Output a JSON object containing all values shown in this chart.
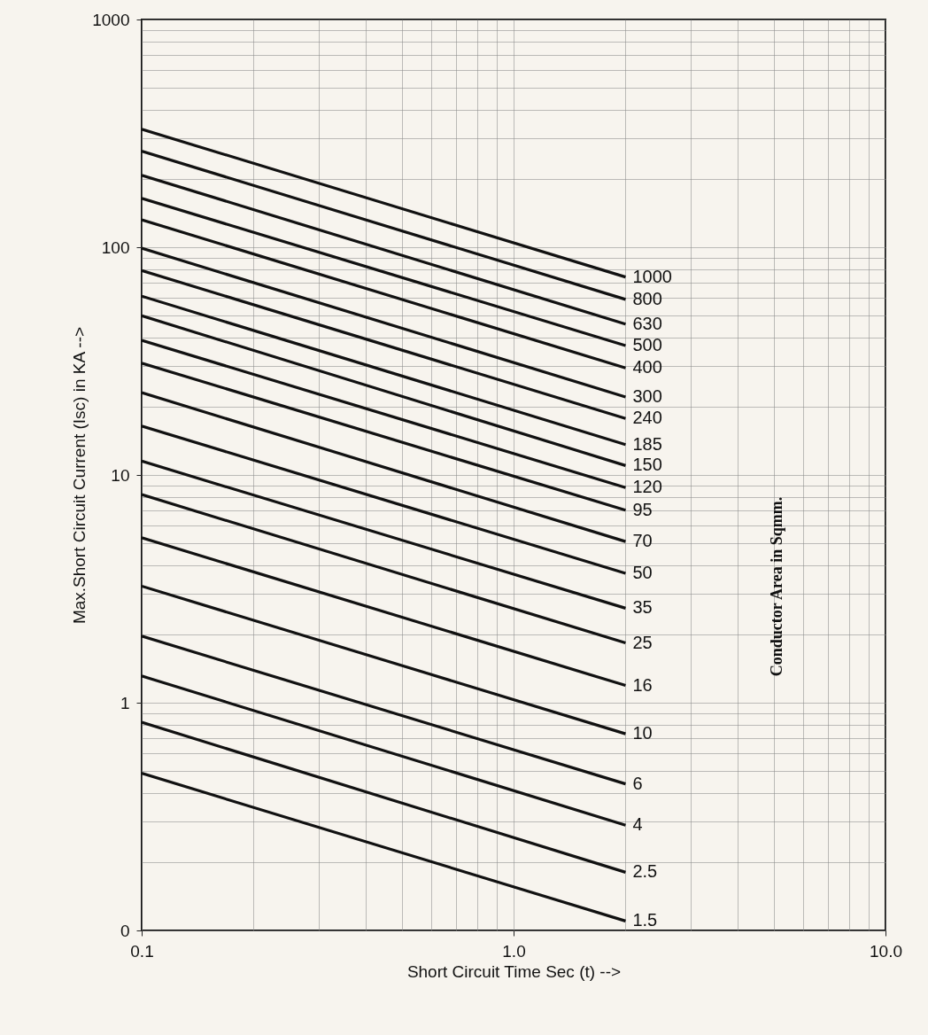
{
  "chart_data": {
    "type": "line",
    "xlabel": "Short Circuit Time Sec (t) -->",
    "ylabel": "Max.Short Circuit Current (Isc) in KA -->",
    "legend_title": "Conductor Area in  Sqmm.",
    "x": [
      0.1,
      2
    ],
    "series": [
      {
        "name": "1000",
        "color": "#111111",
        "values": [
          330,
          74
        ]
      },
      {
        "name": "800",
        "color": "#111111",
        "values": [
          264,
          59
        ]
      },
      {
        "name": "630",
        "color": "#111111",
        "values": [
          207,
          46
        ]
      },
      {
        "name": "500",
        "color": "#111111",
        "values": [
          164,
          37
        ]
      },
      {
        "name": "400",
        "color": "#111111",
        "values": [
          132,
          29.5
        ]
      },
      {
        "name": "300",
        "color": "#111111",
        "values": [
          99,
          22
        ]
      },
      {
        "name": "240",
        "color": "#111111",
        "values": [
          79,
          17.7
        ]
      },
      {
        "name": "185",
        "color": "#111111",
        "values": [
          61,
          13.6
        ]
      },
      {
        "name": "150",
        "color": "#111111",
        "values": [
          50,
          11
        ]
      },
      {
        "name": "120",
        "color": "#111111",
        "values": [
          39,
          8.8
        ]
      },
      {
        "name": "95",
        "color": "#111111",
        "values": [
          31,
          7
        ]
      },
      {
        "name": "70",
        "color": "#111111",
        "values": [
          23,
          5.1
        ]
      },
      {
        "name": "50",
        "color": "#111111",
        "values": [
          16.4,
          3.7
        ]
      },
      {
        "name": "35",
        "color": "#111111",
        "values": [
          11.5,
          2.6
        ]
      },
      {
        "name": "25",
        "color": "#111111",
        "values": [
          8.2,
          1.83
        ]
      },
      {
        "name": "16",
        "color": "#111111",
        "values": [
          5.3,
          1.19
        ]
      },
      {
        "name": "10",
        "color": "#111111",
        "values": [
          3.25,
          0.73
        ]
      },
      {
        "name": "6",
        "color": "#111111",
        "values": [
          1.96,
          0.44
        ]
      },
      {
        "name": "4",
        "color": "#111111",
        "values": [
          1.31,
          0.29
        ]
      },
      {
        "name": "2.5",
        "color": "#111111",
        "values": [
          0.82,
          0.18
        ]
      },
      {
        "name": "1.5",
        "color": "#111111",
        "values": [
          0.49,
          0.11
        ]
      }
    ],
    "log": "xy",
    "xlim": [
      0.1,
      10
    ],
    "ylim": [
      0.1,
      1000
    ],
    "xticks": [
      0.1,
      {
        "value": 1,
        "label": "1.0"
      },
      {
        "value": 10,
        "label": "10.0"
      }
    ],
    "yticks": [
      {
        "value": 0.1,
        "label": "0"
      },
      1,
      10,
      100,
      1000
    ],
    "grid": true,
    "marker": "none",
    "line_style": "solid",
    "legend": false
  }
}
